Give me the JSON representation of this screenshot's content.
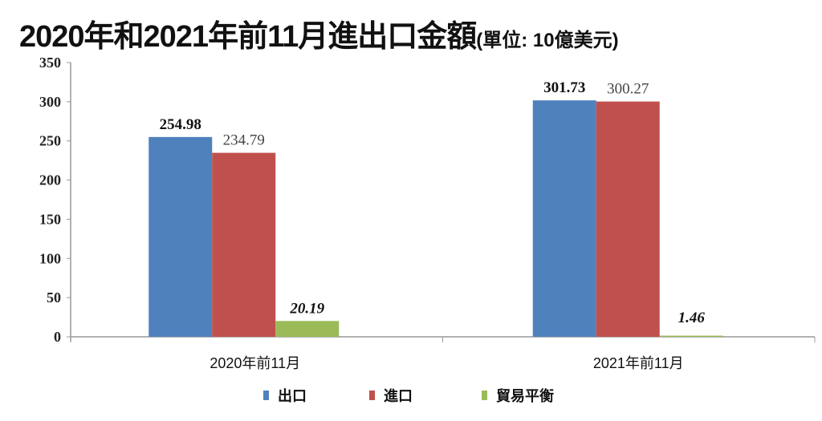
{
  "chart_data": {
    "type": "bar",
    "title": "2020年和2021年前11月進出口金額",
    "subtitle": "(單位: 10億美元)",
    "categories": [
      "2020年前11月",
      "2021年前11月"
    ],
    "series": [
      {
        "name": "出口",
        "values": [
          254.98,
          301.73
        ],
        "color": "#4f81bd",
        "labels": [
          "254.98",
          "301.73"
        ],
        "label_style": "bold"
      },
      {
        "name": "進口",
        "values": [
          234.79,
          300.27
        ],
        "color": "#c0504d",
        "labels": [
          "234.79",
          "300.27"
        ],
        "label_style": "normal"
      },
      {
        "name": "貿易平衡",
        "values": [
          20.19,
          1.46
        ],
        "color": "#9bbb59",
        "labels": [
          "20.19",
          "1.46"
        ],
        "label_style": "bold-italic"
      }
    ],
    "ylim": [
      0,
      350
    ],
    "yticks": [
      "0",
      "50",
      "100",
      "150",
      "200",
      "250",
      "300",
      "350"
    ],
    "grid": false,
    "legend": "bottom"
  }
}
